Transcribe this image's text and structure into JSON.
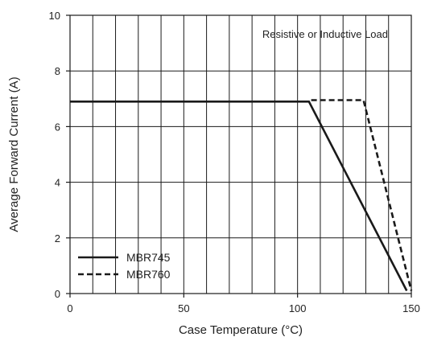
{
  "chart_data": {
    "type": "line",
    "title": "",
    "xlabel": "Case Temperature (°C)",
    "ylabel": "Average Forward Current (A)",
    "xlim": [
      0,
      150
    ],
    "ylim": [
      0,
      10
    ],
    "x_ticks": [
      "0",
      "50",
      "100",
      "150"
    ],
    "y_ticks": [
      "0",
      "2",
      "4",
      "6",
      "8",
      "10"
    ],
    "grid": true,
    "grid_x_step": 10,
    "grid_y_step": 2,
    "annotation": "Resistive or Inductive Load",
    "legend_position": "bottom-left",
    "series": [
      {
        "name": "MBR745",
        "style": "solid",
        "color": "#1a1a1a",
        "points": [
          [
            0,
            6.9
          ],
          [
            105,
            6.9
          ],
          [
            148,
            0.1
          ]
        ]
      },
      {
        "name": "MBR760",
        "style": "dashed",
        "color": "#1a1a1a",
        "points": [
          [
            106,
            6.95
          ],
          [
            129,
            6.95
          ],
          [
            150,
            0.1
          ]
        ]
      }
    ]
  }
}
